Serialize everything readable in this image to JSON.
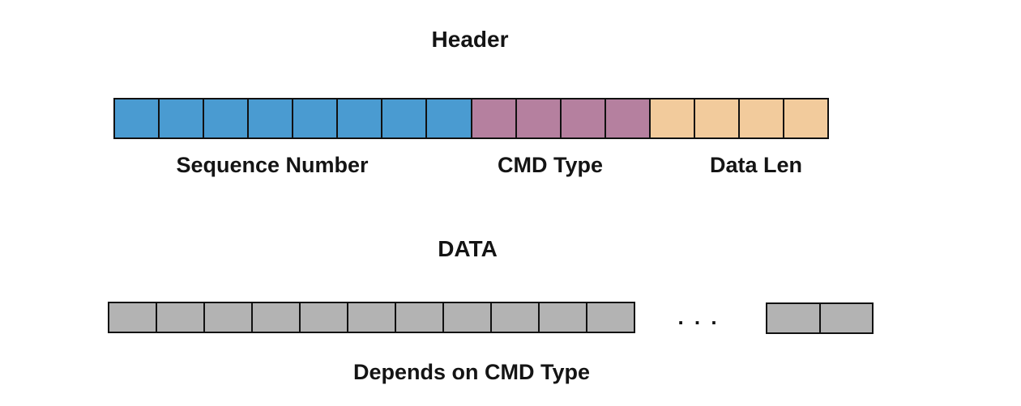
{
  "header_section": {
    "title": "Header",
    "border_color": "#111111",
    "fields": [
      {
        "label": "Sequence Number",
        "cells": 8,
        "color": "#4A9BD1"
      },
      {
        "label": "CMD Type",
        "cells": 4,
        "color": "#B5809F"
      },
      {
        "label": "Data Len",
        "cells": 4,
        "color": "#F2CB9C"
      }
    ]
  },
  "data_section": {
    "title": "DATA",
    "caption": "Depends on CMD Type",
    "cell_color": "#B3B3B3",
    "leading_cell_count": 11,
    "ellipsis": ". . .",
    "trailing_cell_count": 2
  }
}
